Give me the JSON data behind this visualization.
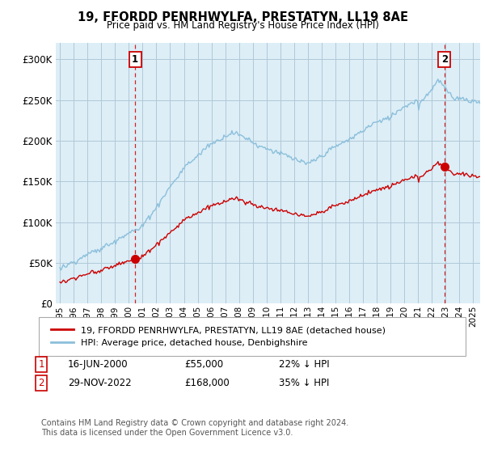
{
  "title": "19, FFORDD PENRHWYLFA, PRESTATYN, LL19 8AE",
  "subtitle": "Price paid vs. HM Land Registry's House Price Index (HPI)",
  "hpi_color": "#8bbfdb",
  "hpi_fill": "#ddeef7",
  "sold_color": "#cc0000",
  "vline_color": "#cc0000",
  "background_color": "#ffffff",
  "plot_bg_color": "#ddeef7",
  "grid_color": "#b0c8d8",
  "ylim": [
    0,
    320000
  ],
  "yticks": [
    0,
    50000,
    100000,
    150000,
    200000,
    250000,
    300000
  ],
  "xlim_left": 1994.7,
  "xlim_right": 2025.5,
  "sale1_year": 2000.46,
  "sale1_price": 55000,
  "sale2_year": 2022.91,
  "sale2_price": 168000,
  "legend1": "19, FFORDD PENRHWYLFA, PRESTATYN, LL19 8AE (detached house)",
  "legend2": "HPI: Average price, detached house, Denbighshire",
  "copyright": "Contains HM Land Registry data © Crown copyright and database right 2024.\nThis data is licensed under the Open Government Licence v3.0."
}
